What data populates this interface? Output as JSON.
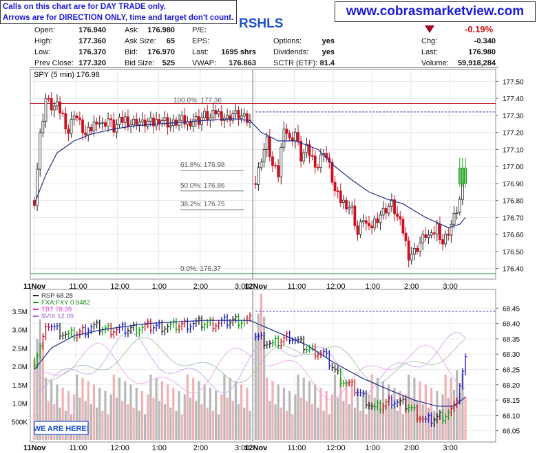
{
  "disclaimer": {
    "line1": "Calls on this chart are for DAY TRADE only.",
    "line2": "Arrows are for DIRECTION ONLY, time and target don't count."
  },
  "site_url": "www.cobrasmarketview.com",
  "symbol": "RSHLS",
  "quote": {
    "open_label": "Open:",
    "open": "176.940",
    "high_label": "High:",
    "high": "177.360",
    "low_label": "Low:",
    "low": "176.370",
    "prev_close_label": "Prev Close:",
    "prev_close": "177.320",
    "ask_label": "Ask:",
    "ask": "176.980",
    "ask_size_label": "Ask Size:",
    "ask_size": "65",
    "bid_label": "Bid:",
    "bid": "176.970",
    "bid_size_label": "Bid Size:",
    "bid_size": "525",
    "pe_label": "P/E:",
    "eps_label": "EPS:",
    "last_shrs_label": "Last:",
    "last_shrs": "1695 shrs",
    "vwap_label": "VWAP:",
    "vwap": "176.863",
    "options_label": "Options:",
    "options": "yes",
    "dividends_label": "Dividends:",
    "dividends": "yes",
    "sctr_label": "SCTR (ETF):",
    "sctr": "81.4",
    "chg_pct": "-0.19%",
    "chg_label": "Chg:",
    "chg": "-0.340",
    "last_label": "Last:",
    "last": "176.980",
    "volume_label": "Volume:",
    "volume": "59,918,284"
  },
  "colors": {
    "up": "#1aa01a",
    "down": "#cc1020",
    "neutral": "#222222",
    "ma": "#1c2a8a",
    "link": "#1a1adb"
  },
  "chart_data": [
    {
      "type": "candlestick",
      "title": "SPY (5 min) 176.98",
      "x_labels": [
        "11Nov",
        "11:00",
        "12:00",
        "1:00",
        "2:00",
        "3:00",
        "12Nov",
        "11:00",
        "12:00",
        "1:00",
        "2:00",
        "3:00"
      ],
      "y_ticks": [
        176.4,
        176.5,
        176.6,
        176.7,
        176.8,
        176.9,
        177.0,
        177.1,
        177.2,
        177.3,
        177.4,
        177.5
      ],
      "ylim": [
        176.35,
        177.55
      ],
      "fib_levels": [
        {
          "label": "100.0%: 177.36",
          "value": 177.36
        },
        {
          "label": "61.8%: 176.98",
          "value": 176.98
        },
        {
          "label": "50.0%: 176.86",
          "value": 176.86
        },
        {
          "label": "38.2%: 176.75",
          "value": 176.75
        },
        {
          "label": "0.0%: 176.37",
          "value": 176.37
        }
      ],
      "hlines": [
        {
          "value": 177.37,
          "color": "#c0202a",
          "style": "solid"
        },
        {
          "value": 177.32,
          "color": "#2a2ab0",
          "style": "dashed",
          "from_session": 2
        },
        {
          "value": 176.37,
          "color": "#1a8a1a",
          "style": "solid"
        }
      ],
      "close_path": [
        [
          0,
          176.8
        ],
        [
          2,
          177.18
        ],
        [
          4,
          177.4
        ],
        [
          6,
          177.35
        ],
        [
          8,
          177.35
        ],
        [
          10,
          177.3
        ],
        [
          12,
          177.2
        ],
        [
          14,
          177.32
        ],
        [
          16,
          177.25
        ],
        [
          18,
          177.18
        ],
        [
          20,
          177.22
        ],
        [
          22,
          177.28
        ],
        [
          24,
          177.24
        ],
        [
          26,
          177.28
        ],
        [
          28,
          177.22
        ],
        [
          30,
          177.26
        ],
        [
          32,
          177.28
        ],
        [
          34,
          177.25
        ],
        [
          36,
          177.27
        ],
        [
          38,
          177.25
        ],
        [
          40,
          177.26
        ],
        [
          42,
          177.25
        ],
        [
          44,
          177.28
        ],
        [
          46,
          177.27
        ],
        [
          48,
          177.24
        ],
        [
          50,
          177.26
        ],
        [
          52,
          177.27
        ],
        [
          54,
          177.25
        ],
        [
          56,
          177.28
        ],
        [
          58,
          177.27
        ],
        [
          60,
          177.3
        ],
        [
          62,
          177.28
        ],
        [
          64,
          177.32
        ],
        [
          66,
          177.3
        ],
        [
          68,
          177.28
        ],
        [
          70,
          177.31
        ],
        [
          72,
          177.3
        ],
        [
          74,
          177.28
        ],
        [
          76,
          177.26
        ],
        [
          78,
          176.9
        ],
        [
          80,
          177.05
        ],
        [
          82,
          177.15
        ],
        [
          84,
          177.0
        ],
        [
          86,
          176.95
        ],
        [
          88,
          177.25
        ],
        [
          90,
          177.15
        ],
        [
          92,
          177.2
        ],
        [
          94,
          177.05
        ],
        [
          96,
          177.1
        ],
        [
          98,
          177.05
        ],
        [
          100,
          177.0
        ],
        [
          102,
          177.1
        ],
        [
          104,
          177.0
        ],
        [
          106,
          176.85
        ],
        [
          108,
          176.8
        ],
        [
          110,
          176.78
        ],
        [
          112,
          176.75
        ],
        [
          114,
          176.6
        ],
        [
          116,
          176.7
        ],
        [
          118,
          176.62
        ],
        [
          120,
          176.68
        ],
        [
          122,
          176.72
        ],
        [
          124,
          176.75
        ],
        [
          126,
          176.78
        ],
        [
          128,
          176.7
        ],
        [
          130,
          176.62
        ],
        [
          132,
          176.48
        ],
        [
          134,
          176.5
        ],
        [
          136,
          176.55
        ],
        [
          138,
          176.6
        ],
        [
          140,
          176.58
        ],
        [
          142,
          176.65
        ],
        [
          144,
          176.55
        ],
        [
          146,
          176.62
        ],
        [
          148,
          176.7
        ],
        [
          150,
          176.8
        ],
        [
          152,
          176.98
        ]
      ],
      "ma_path": [
        [
          0,
          176.78
        ],
        [
          4,
          176.95
        ],
        [
          8,
          177.08
        ],
        [
          14,
          177.15
        ],
        [
          20,
          177.19
        ],
        [
          28,
          177.22
        ],
        [
          36,
          177.24
        ],
        [
          44,
          177.25
        ],
        [
          52,
          177.26
        ],
        [
          60,
          177.27
        ],
        [
          70,
          177.28
        ],
        [
          76,
          177.27
        ],
        [
          80,
          177.2
        ],
        [
          86,
          177.15
        ],
        [
          92,
          177.15
        ],
        [
          100,
          177.1
        ],
        [
          106,
          177.0
        ],
        [
          112,
          176.92
        ],
        [
          118,
          176.85
        ],
        [
          124,
          176.81
        ],
        [
          130,
          176.78
        ],
        [
          134,
          176.74
        ],
        [
          138,
          176.7
        ],
        [
          142,
          176.67
        ],
        [
          146,
          176.64
        ],
        [
          150,
          176.66
        ],
        [
          152,
          176.7
        ]
      ]
    },
    {
      "type": "bar_line_overlay",
      "legend": [
        "RSP 68.28",
        "FXA:FXY 0.9482",
        "TBT 78.39",
        "$VIX 12.69"
      ],
      "legend_colors": [
        "#222222",
        "#1a8a1a",
        "#d040d0",
        "#9a6ad0"
      ],
      "y_ticks_right": [
        68.05,
        68.1,
        68.15,
        68.2,
        68.25,
        68.3,
        68.35,
        68.4,
        68.45
      ],
      "ylim_right": [
        68.02,
        68.5
      ],
      "y_ticks_left": [
        "500K",
        "1.0M",
        "1.5M",
        "2.0M",
        "2.5M",
        "3.0M",
        "3.5M"
      ],
      "volume_ylim": [
        0,
        4000000
      ],
      "x_labels": [
        "11Nov",
        "11:00",
        "12:00",
        "1:00",
        "2:00",
        "3:00",
        "12Nov",
        "11:00",
        "12:00",
        "1:00",
        "2:00",
        "3:00"
      ],
      "rsp_dashed_level": 68.44,
      "rsp_close_path": [
        [
          0,
          68.28
        ],
        [
          3,
          68.35
        ],
        [
          5,
          68.4
        ],
        [
          8,
          68.38
        ],
        [
          12,
          68.36
        ],
        [
          16,
          68.37
        ],
        [
          20,
          68.39
        ],
        [
          26,
          68.38
        ],
        [
          32,
          68.38
        ],
        [
          40,
          68.39
        ],
        [
          48,
          68.39
        ],
        [
          56,
          68.4
        ],
        [
          64,
          68.4
        ],
        [
          70,
          68.41
        ],
        [
          76,
          68.41
        ],
        [
          78,
          68.36
        ],
        [
          84,
          68.33
        ],
        [
          90,
          68.36
        ],
        [
          96,
          68.32
        ],
        [
          102,
          68.3
        ],
        [
          108,
          68.22
        ],
        [
          114,
          68.18
        ],
        [
          120,
          68.12
        ],
        [
          126,
          68.15
        ],
        [
          132,
          68.13
        ],
        [
          138,
          68.08
        ],
        [
          144,
          68.1
        ],
        [
          148,
          68.12
        ],
        [
          152,
          68.28
        ]
      ],
      "rsp_ma_path": [
        [
          0,
          68.25
        ],
        [
          6,
          68.32
        ],
        [
          14,
          68.36
        ],
        [
          24,
          68.38
        ],
        [
          40,
          68.4
        ],
        [
          60,
          68.41
        ],
        [
          76,
          68.41
        ],
        [
          86,
          68.37
        ],
        [
          96,
          68.33
        ],
        [
          106,
          68.27
        ],
        [
          116,
          68.22
        ],
        [
          126,
          68.18
        ],
        [
          134,
          68.15
        ],
        [
          142,
          68.13
        ],
        [
          148,
          68.13
        ],
        [
          152,
          68.16
        ]
      ],
      "volume_bars_desc": "gray and light-red volume bars across sessions",
      "note_button": "WE ARE HERE!"
    }
  ]
}
